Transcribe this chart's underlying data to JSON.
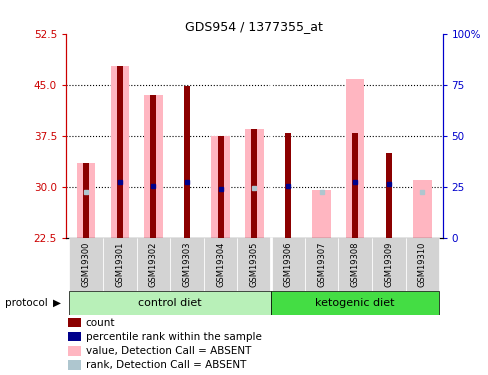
{
  "title": "GDS954 / 1377355_at",
  "samples": [
    "GSM19300",
    "GSM19301",
    "GSM19302",
    "GSM19303",
    "GSM19304",
    "GSM19305",
    "GSM19306",
    "GSM19307",
    "GSM19308",
    "GSM19309",
    "GSM19310"
  ],
  "red_bars": [
    33.5,
    47.8,
    43.5,
    44.8,
    37.5,
    38.5,
    38.0,
    null,
    38.0,
    35.0,
    null
  ],
  "pink_bars": [
    33.5,
    47.8,
    43.5,
    null,
    37.5,
    38.5,
    null,
    29.5,
    45.8,
    null,
    31.0
  ],
  "blue_dots": [
    null,
    30.8,
    30.2,
    30.8,
    29.7,
    null,
    30.2,
    null,
    30.8,
    30.5,
    null
  ],
  "lightblue_dots": [
    29.2,
    null,
    null,
    null,
    null,
    29.8,
    null,
    29.3,
    null,
    null,
    29.2
  ],
  "ylim_left": [
    22.5,
    52.5
  ],
  "ylim_right": [
    0,
    100
  ],
  "yticks_left": [
    22.5,
    30.0,
    37.5,
    45.0,
    52.5
  ],
  "yticks_right": [
    0,
    25,
    50,
    75,
    100
  ],
  "red_color": "#8b0000",
  "pink_color": "#ffb6c1",
  "blue_color": "#00008b",
  "lightblue_color": "#aec6cf",
  "left_axis_color": "#cc0000",
  "right_axis_color": "#0000cc",
  "label_bg": "#d3d3d3",
  "control_color": "#b8f0b8",
  "keto_color": "#44dd44",
  "n_control": 6,
  "n_keto": 5
}
